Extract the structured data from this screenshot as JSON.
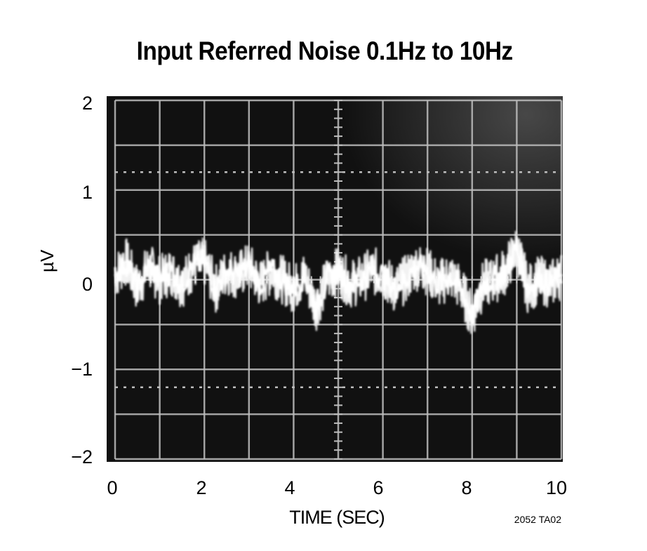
{
  "chart_data": {
    "type": "line",
    "title": "Input Referred Noise 0.1Hz to 10Hz",
    "xlabel": "TIME (SEC)",
    "ylabel": "µV",
    "xlim": [
      0,
      10
    ],
    "ylim": [
      -2,
      2
    ],
    "x_ticks": [
      "0",
      "2",
      "4",
      "6",
      "8",
      "10"
    ],
    "y_ticks": [
      "2",
      "1",
      "0",
      "−1",
      "−2"
    ],
    "grid": true,
    "background": "#111111",
    "trace_color": "#f2f2f2",
    "series": [
      {
        "x": [
          0,
          0.25,
          0.5,
          0.75,
          1,
          1.25,
          1.5,
          1.75,
          2,
          2.25,
          2.5,
          2.75,
          3,
          3.25,
          3.5,
          3.75,
          4,
          4.25,
          4.5,
          4.75,
          5,
          5.25,
          5.5,
          5.75,
          6,
          6.25,
          6.5,
          6.75,
          7,
          7.25,
          7.5,
          7.75,
          8,
          8.25,
          8.5,
          8.75,
          9,
          9.25,
          9.5,
          9.75,
          10
        ],
        "y": [
          0.05,
          0.2,
          -0.1,
          0.15,
          0.0,
          0.1,
          -0.05,
          0.15,
          0.2,
          -0.1,
          0.1,
          0.05,
          0.15,
          -0.05,
          0.1,
          0.0,
          -0.1,
          0.05,
          -0.3,
          0.0,
          0.1,
          -0.05,
          0.0,
          0.1,
          0.05,
          -0.1,
          0.0,
          0.15,
          0.1,
          -0.05,
          0.05,
          -0.1,
          -0.4,
          -0.05,
          0.0,
          0.1,
          0.35,
          -0.1,
          0.0,
          -0.05,
          0.05
        ]
      }
    ]
  },
  "figure_code": "2052 TA02"
}
